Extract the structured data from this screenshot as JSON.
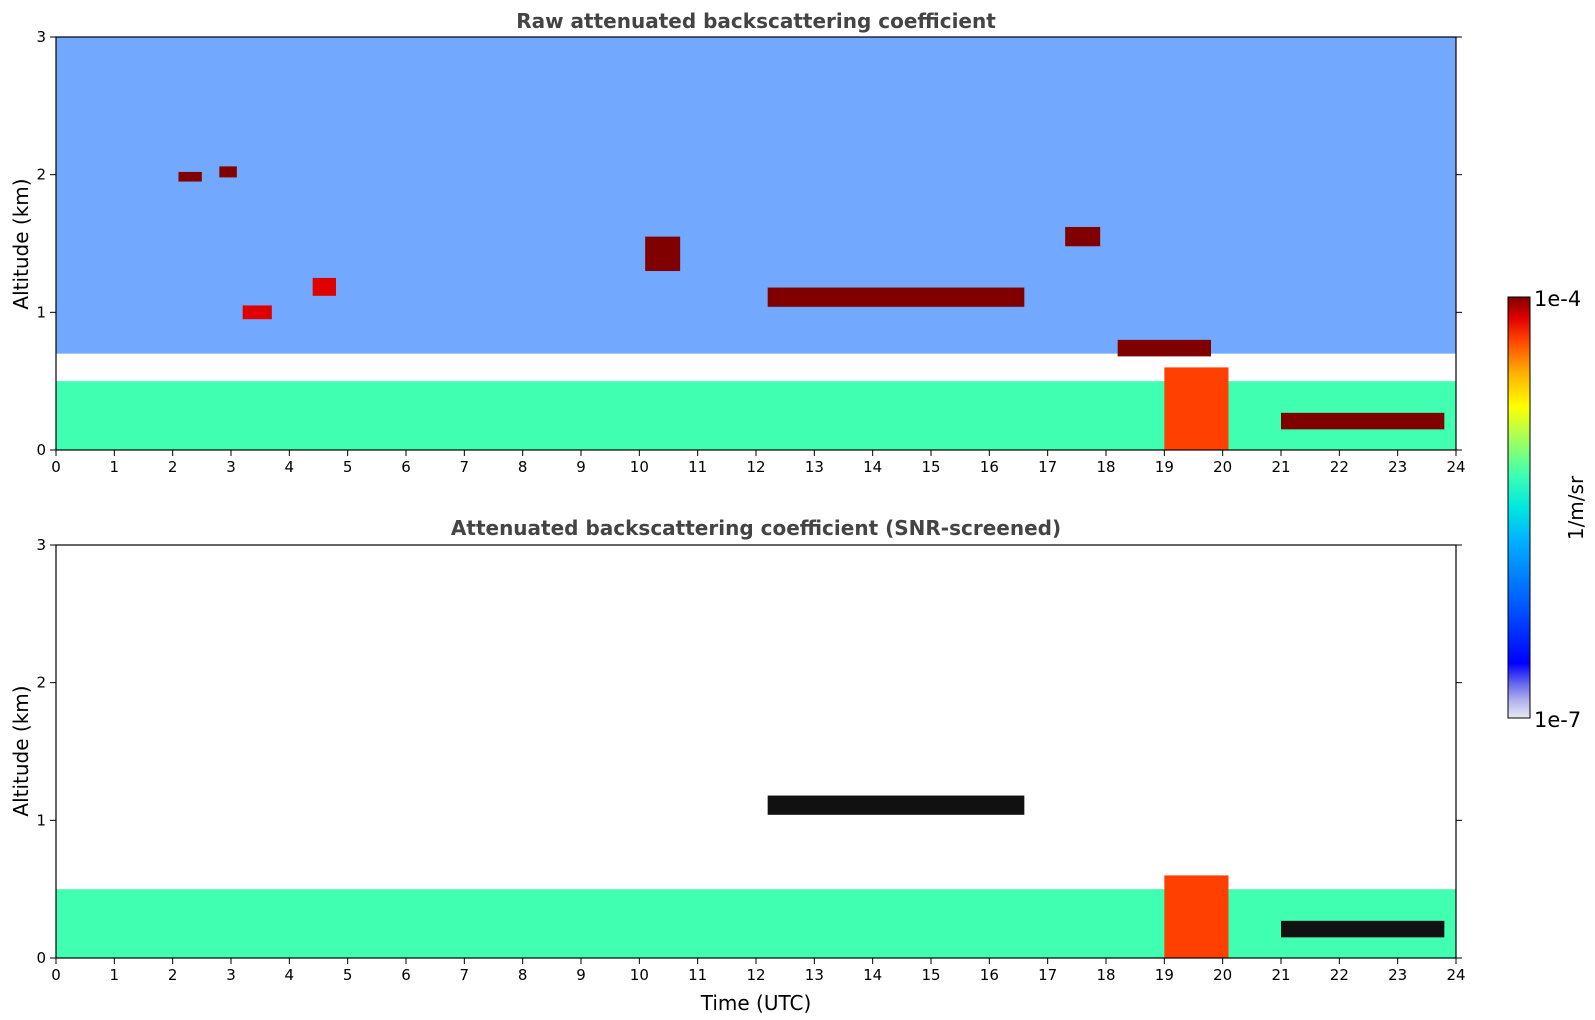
{
  "chart_data": [
    {
      "type": "heatmap",
      "title": "Raw attenuated backscattering coefficient",
      "xlabel": "",
      "ylabel": "Altitude (km)",
      "xlim": [
        0,
        24
      ],
      "ylim": [
        0,
        3
      ],
      "xticks": [
        "0",
        "1",
        "2",
        "3",
        "4",
        "5",
        "6",
        "7",
        "8",
        "9",
        "10",
        "11",
        "12",
        "13",
        "14",
        "15",
        "16",
        "17",
        "18",
        "19",
        "20",
        "21",
        "22",
        "23",
        "24"
      ],
      "yticks": [
        "0",
        "1",
        "2",
        "3"
      ],
      "features": [
        {
          "kind": "noise",
          "x": [
            0,
            24
          ],
          "y": [
            0.7,
            3.0
          ],
          "level": 0.3
        },
        {
          "kind": "background_layer",
          "x": [
            0,
            24
          ],
          "y": [
            0,
            0.5
          ],
          "level": 0.52
        },
        {
          "kind": "cloud_layer",
          "x": [
            12.2,
            16.6
          ],
          "y": [
            1.04,
            1.18
          ],
          "level": 1.0
        },
        {
          "kind": "cloud_layer",
          "x": [
            4.4,
            4.8
          ],
          "y": [
            1.12,
            1.25
          ],
          "level": 0.95
        },
        {
          "kind": "cloud_layer",
          "x": [
            3.2,
            3.7
          ],
          "y": [
            0.95,
            1.05
          ],
          "level": 0.95
        },
        {
          "kind": "cloud_layer",
          "x": [
            2.1,
            2.5
          ],
          "y": [
            1.95,
            2.02
          ],
          "level": 1.0
        },
        {
          "kind": "cloud_layer",
          "x": [
            2.8,
            3.1
          ],
          "y": [
            1.98,
            2.06
          ],
          "level": 1.0
        },
        {
          "kind": "cloud_layer",
          "x": [
            10.1,
            10.7
          ],
          "y": [
            1.3,
            1.55
          ],
          "level": 1.0
        },
        {
          "kind": "cloud_layer",
          "x": [
            17.3,
            17.9
          ],
          "y": [
            1.48,
            1.62
          ],
          "level": 1.0
        },
        {
          "kind": "cloud_layer",
          "x": [
            18.2,
            19.8
          ],
          "y": [
            0.68,
            0.8
          ],
          "level": 1.0
        },
        {
          "kind": "cloud_layer",
          "x": [
            21.0,
            23.8
          ],
          "y": [
            0.15,
            0.27
          ],
          "level": 1.0
        },
        {
          "kind": "precipitation",
          "x": [
            19.0,
            20.1
          ],
          "y": [
            0,
            0.6
          ],
          "level": 0.85
        }
      ]
    },
    {
      "type": "heatmap",
      "title": "Attenuated backscattering coefficient (SNR-screened)",
      "xlabel": "Time (UTC)",
      "ylabel": "Altitude (km)",
      "xlim": [
        0,
        24
      ],
      "ylim": [
        0,
        3
      ],
      "xticks": [
        "0",
        "1",
        "2",
        "3",
        "4",
        "5",
        "6",
        "7",
        "8",
        "9",
        "10",
        "11",
        "12",
        "13",
        "14",
        "15",
        "16",
        "17",
        "18",
        "19",
        "20",
        "21",
        "22",
        "23",
        "24"
      ],
      "yticks": [
        "0",
        "1",
        "2",
        "3"
      ],
      "features": [
        {
          "kind": "background_layer",
          "x": [
            0,
            24
          ],
          "y": [
            0,
            0.5
          ],
          "level": 0.52
        },
        {
          "kind": "cloud_layer",
          "x": [
            12.2,
            16.6
          ],
          "y": [
            1.04,
            1.18
          ],
          "level": 1.0
        },
        {
          "kind": "cloud_layer",
          "x": [
            21.0,
            23.8
          ],
          "y": [
            0.15,
            0.27
          ],
          "level": 1.0
        },
        {
          "kind": "precipitation",
          "x": [
            19.0,
            20.1
          ],
          "y": [
            0,
            0.6
          ],
          "level": 0.85
        }
      ]
    }
  ],
  "colorbar": {
    "label": "1/m/sr",
    "max_label": "1e-4",
    "min_label": "1e-7",
    "colormap": "jet",
    "colors": [
      "#e8e8f4",
      "#b4b4ee",
      "#6a6aee",
      "#0000ff",
      "#0060ff",
      "#00b0ff",
      "#00e8e0",
      "#40ffb0",
      "#a0ff60",
      "#ffff00",
      "#ffb000",
      "#ff4000",
      "#e00000",
      "#800000"
    ]
  }
}
